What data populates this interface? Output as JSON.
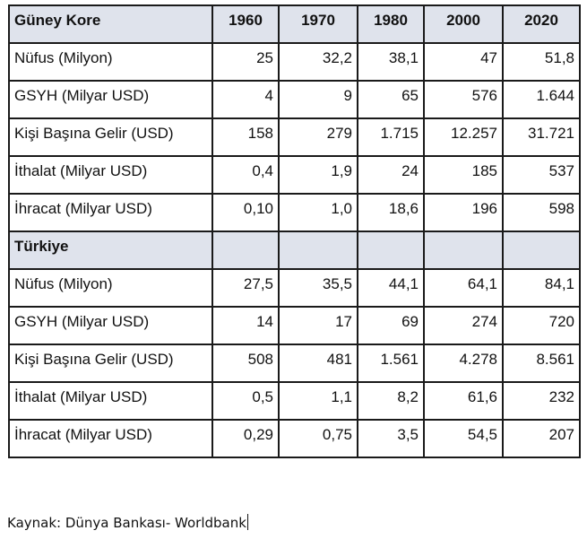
{
  "years": [
    "1960",
    "1970",
    "1980",
    "2000",
    "2020"
  ],
  "sections": [
    {
      "name": "Güney Kore",
      "rows": [
        {
          "label": "Nüfus (Milyon)",
          "values": [
            "25",
            "32,2",
            "38,1",
            "47",
            "51,8"
          ]
        },
        {
          "label": "GSYH (Milyar USD)",
          "values": [
            "4",
            "9",
            "65",
            "576",
            "1.644"
          ]
        },
        {
          "label": "Kişi Başına Gelir (USD)",
          "values": [
            "158",
            "279",
            "1.715",
            "12.257",
            "31.721"
          ]
        },
        {
          "label": "İthalat (Milyar USD)",
          "values": [
            "0,4",
            "1,9",
            "24",
            "185",
            "537"
          ]
        },
        {
          "label": "İhracat (Milyar USD)",
          "values": [
            "0,10",
            "1,0",
            "18,6",
            "196",
            "598"
          ]
        }
      ]
    },
    {
      "name": "Türkiye",
      "rows": [
        {
          "label": "Nüfus (Milyon)",
          "values": [
            "27,5",
            "35,5",
            "44,1",
            "64,1",
            "84,1"
          ]
        },
        {
          "label": "GSYH (Milyar USD)",
          "values": [
            "14",
            "17",
            "69",
            "274",
            "720"
          ]
        },
        {
          "label": "Kişi Başına Gelir (USD)",
          "values": [
            "508",
            "481",
            "1.561",
            "4.278",
            "8.561"
          ]
        },
        {
          "label": "İthalat (Milyar USD)",
          "values": [
            "0,5",
            "1,1",
            "8,2",
            "61,6",
            "232"
          ]
        },
        {
          "label": "İhracat (Milyar USD)",
          "values": [
            "0,29",
            "0,75",
            "3,5",
            "54,5",
            "207"
          ]
        }
      ]
    }
  ],
  "source": "Kaynak: Dünya Bankası- Worldbank"
}
